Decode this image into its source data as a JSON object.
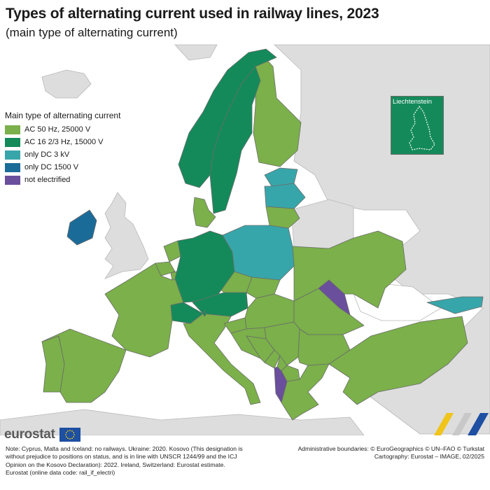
{
  "title": "Types of alternating current used in railway lines, 2023",
  "subtitle": "(main type of alternating current)",
  "legend": {
    "title": "Main type of alternating current",
    "items": [
      {
        "label": "AC 50 Hz, 25000 V",
        "color": "#7bb04a"
      },
      {
        "label": "AC 16 2/3 Hz, 15000 V",
        "color": "#148a5a"
      },
      {
        "label": "only DC 3 kV",
        "color": "#37a6aa"
      },
      {
        "label": "only DC 1500 V",
        "color": "#1b6b98"
      },
      {
        "label": "not electrified",
        "color": "#6a4f9c"
      }
    ]
  },
  "inset": {
    "label": "Liechtenstein",
    "color": "#148a5a"
  },
  "colors": {
    "non_eu_land": "#dddddd",
    "sea": "#ffffff",
    "border": "#6b6b6b"
  },
  "countries": [
    {
      "name": "Portugal",
      "category": "AC 50 Hz, 25000 V"
    },
    {
      "name": "Spain",
      "category": "AC 50 Hz, 25000 V"
    },
    {
      "name": "France",
      "category": "AC 50 Hz, 25000 V"
    },
    {
      "name": "Belgium",
      "category": "AC 50 Hz, 25000 V"
    },
    {
      "name": "Netherlands",
      "category": "AC 50 Hz, 25000 V"
    },
    {
      "name": "Luxembourg",
      "category": "AC 50 Hz, 25000 V"
    },
    {
      "name": "Italy",
      "category": "AC 50 Hz, 25000 V"
    },
    {
      "name": "Denmark",
      "category": "AC 50 Hz, 25000 V"
    },
    {
      "name": "Finland",
      "category": "AC 50 Hz, 25000 V"
    },
    {
      "name": "Lithuania",
      "category": "AC 50 Hz, 25000 V"
    },
    {
      "name": "Czechia",
      "category": "AC 50 Hz, 25000 V"
    },
    {
      "name": "Slovakia",
      "category": "AC 50 Hz, 25000 V"
    },
    {
      "name": "Hungary",
      "category": "AC 50 Hz, 25000 V"
    },
    {
      "name": "Slovenia",
      "category": "AC 50 Hz, 25000 V"
    },
    {
      "name": "Croatia",
      "category": "AC 50 Hz, 25000 V"
    },
    {
      "name": "Bosnia and Herzegovina",
      "category": "AC 50 Hz, 25000 V"
    },
    {
      "name": "Serbia",
      "category": "AC 50 Hz, 25000 V"
    },
    {
      "name": "Montenegro",
      "category": "AC 50 Hz, 25000 V"
    },
    {
      "name": "Kosovo",
      "category": "AC 50 Hz, 25000 V"
    },
    {
      "name": "North Macedonia",
      "category": "AC 50 Hz, 25000 V"
    },
    {
      "name": "Romania",
      "category": "AC 50 Hz, 25000 V"
    },
    {
      "name": "Bulgaria",
      "category": "AC 50 Hz, 25000 V"
    },
    {
      "name": "Greece",
      "category": "AC 50 Hz, 25000 V"
    },
    {
      "name": "Türkiye",
      "category": "AC 50 Hz, 25000 V"
    },
    {
      "name": "Ukraine",
      "category": "AC 50 Hz, 25000 V"
    },
    {
      "name": "Norway",
      "category": "AC 16 2/3 Hz, 15000 V"
    },
    {
      "name": "Sweden",
      "category": "AC 16 2/3 Hz, 15000 V"
    },
    {
      "name": "Germany",
      "category": "AC 16 2/3 Hz, 15000 V"
    },
    {
      "name": "Austria",
      "category": "AC 16 2/3 Hz, 15000 V"
    },
    {
      "name": "Switzerland",
      "category": "AC 16 2/3 Hz, 15000 V"
    },
    {
      "name": "Liechtenstein",
      "category": "AC 16 2/3 Hz, 15000 V"
    },
    {
      "name": "Poland",
      "category": "only DC 3 kV"
    },
    {
      "name": "Latvia",
      "category": "only DC 3 kV"
    },
    {
      "name": "Estonia",
      "category": "only DC 3 kV"
    },
    {
      "name": "Georgia",
      "category": "only DC 3 kV"
    },
    {
      "name": "Ireland",
      "category": "only DC 1500 V"
    },
    {
      "name": "Moldova",
      "category": "not electrified"
    },
    {
      "name": "Albania",
      "category": "not electrified"
    }
  ],
  "footer": {
    "brand": "eurostat",
    "notes": "Note: Cyprus, Malta and Iceland: no railways. Ukraine: 2020. Kosovo (This designation is without prejudice to positions on status, and is in line with UNSCR 1244/99 and the ICJ Opinion on the Kosovo Declaration): 2022. Ireland, Switzerland: Eurostat estimate.",
    "source": "Eurostat (online data code: rail_if_electri)",
    "boundaries": "Administrative boundaries: © EuroGeographics © UN–FAO © Turkstat",
    "cartography": "Cartography: Eurostat – IMAGE, 02/2025"
  }
}
